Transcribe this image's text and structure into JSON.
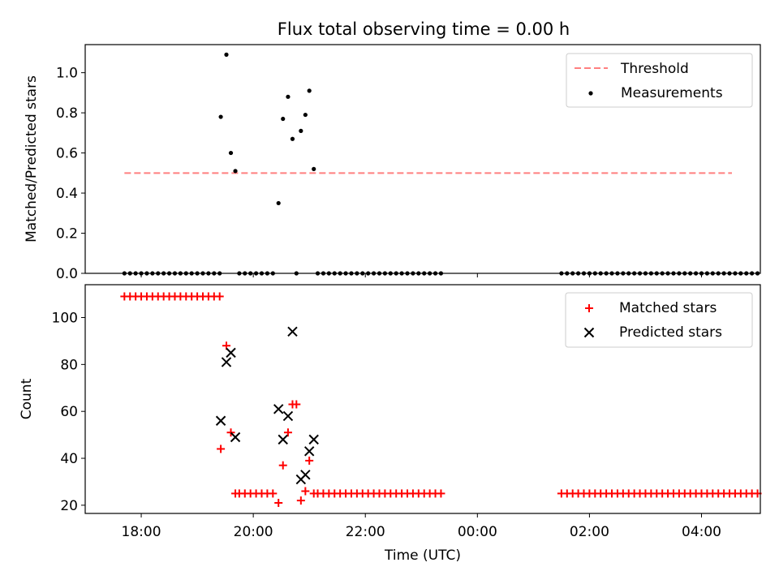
{
  "chart_data": {
    "title": "Flux total observing time = 0.00 h",
    "xlabel": "Time (UTC)",
    "x_unit": "hours since 00:00 UTC on the first night (values >= 24 are after midnight)",
    "xlim": [
      17.0,
      29.05
    ],
    "xticks": [
      {
        "value": 18,
        "label": "18:00"
      },
      {
        "value": 20,
        "label": "20:00"
      },
      {
        "value": 22,
        "label": "22:00"
      },
      {
        "value": 24,
        "label": "00:00"
      },
      {
        "value": 26,
        "label": "02:00"
      },
      {
        "value": 28,
        "label": "04:00"
      }
    ],
    "panels": [
      {
        "type": "scatter",
        "ylabel": "Matched/Predicted stars",
        "ylim": [
          0.0,
          1.14
        ],
        "yticks": [
          {
            "value": 0.0,
            "label": "0.0"
          },
          {
            "value": 0.2,
            "label": "0.2"
          },
          {
            "value": 0.4,
            "label": "0.4"
          },
          {
            "value": 0.6,
            "label": "0.6"
          },
          {
            "value": 0.8,
            "label": "0.8"
          },
          {
            "value": 1.0,
            "label": "1.0"
          }
        ],
        "legend": "top-right",
        "threshold": {
          "name": "Threshold",
          "value": 0.5,
          "x_range": [
            17.7,
            29.05
          ],
          "color": "#ff7f7f"
        },
        "series": [
          {
            "name": "Measurements",
            "marker": "dot",
            "color": "#000000",
            "segments": [
              {
                "x_start": 17.7,
                "x_end": 19.35,
                "step": 0.1,
                "y": 0.0
              },
              {
                "x_start": 19.75,
                "x_end": 20.35,
                "step": 0.1,
                "y": 0.0
              },
              {
                "x_start": 21.15,
                "x_end": 23.3,
                "step": 0.1,
                "y": 0.0
              },
              {
                "x_start": 25.5,
                "x_end": 29.0,
                "step": 0.1,
                "y": 0.0
              }
            ],
            "points": [
              [
                19.42,
                0.78
              ],
              [
                19.52,
                1.09
              ],
              [
                19.6,
                0.6
              ],
              [
                19.68,
                0.51
              ],
              [
                20.45,
                0.35
              ],
              [
                20.53,
                0.77
              ],
              [
                20.62,
                0.88
              ],
              [
                20.7,
                0.67
              ],
              [
                20.77,
                0.0
              ],
              [
                20.85,
                0.71
              ],
              [
                20.93,
                0.79
              ],
              [
                21.0,
                0.91
              ],
              [
                21.08,
                0.52
              ]
            ]
          }
        ]
      },
      {
        "type": "scatter",
        "ylabel": "Count",
        "ylim": [
          16.5,
          114.0
        ],
        "yticks": [
          {
            "value": 20,
            "label": "20"
          },
          {
            "value": 40,
            "label": "40"
          },
          {
            "value": 60,
            "label": "60"
          },
          {
            "value": 80,
            "label": "80"
          },
          {
            "value": 100,
            "label": "100"
          }
        ],
        "legend": "top-right",
        "series": [
          {
            "name": "Matched stars",
            "marker": "plus",
            "color": "#ff0000",
            "segments": [
              {
                "x_start": 17.7,
                "x_end": 19.35,
                "step": 0.1,
                "y": 109
              },
              {
                "x_start": 19.75,
                "x_end": 20.35,
                "step": 0.1,
                "y": 25
              },
              {
                "x_start": 21.15,
                "x_end": 23.3,
                "step": 0.1,
                "y": 25
              },
              {
                "x_start": 25.5,
                "x_end": 29.0,
                "step": 0.1,
                "y": 25
              }
            ],
            "points": [
              [
                19.42,
                44
              ],
              [
                19.52,
                88
              ],
              [
                19.6,
                51
              ],
              [
                19.68,
                25
              ],
              [
                20.45,
                21
              ],
              [
                20.53,
                37
              ],
              [
                20.62,
                51
              ],
              [
                20.7,
                63
              ],
              [
                20.77,
                63
              ],
              [
                20.85,
                22
              ],
              [
                20.93,
                26
              ],
              [
                21.0,
                39
              ],
              [
                21.08,
                25
              ]
            ]
          },
          {
            "name": "Predicted stars",
            "marker": "x",
            "color": "#000000",
            "segments": [],
            "points": [
              [
                19.42,
                56
              ],
              [
                19.52,
                81
              ],
              [
                19.6,
                85
              ],
              [
                19.68,
                49
              ],
              [
                20.45,
                61
              ],
              [
                20.53,
                48
              ],
              [
                20.62,
                58
              ],
              [
                20.7,
                94
              ],
              [
                20.85,
                31
              ],
              [
                20.93,
                33
              ],
              [
                21.0,
                43
              ],
              [
                21.08,
                48
              ]
            ]
          }
        ]
      }
    ]
  }
}
